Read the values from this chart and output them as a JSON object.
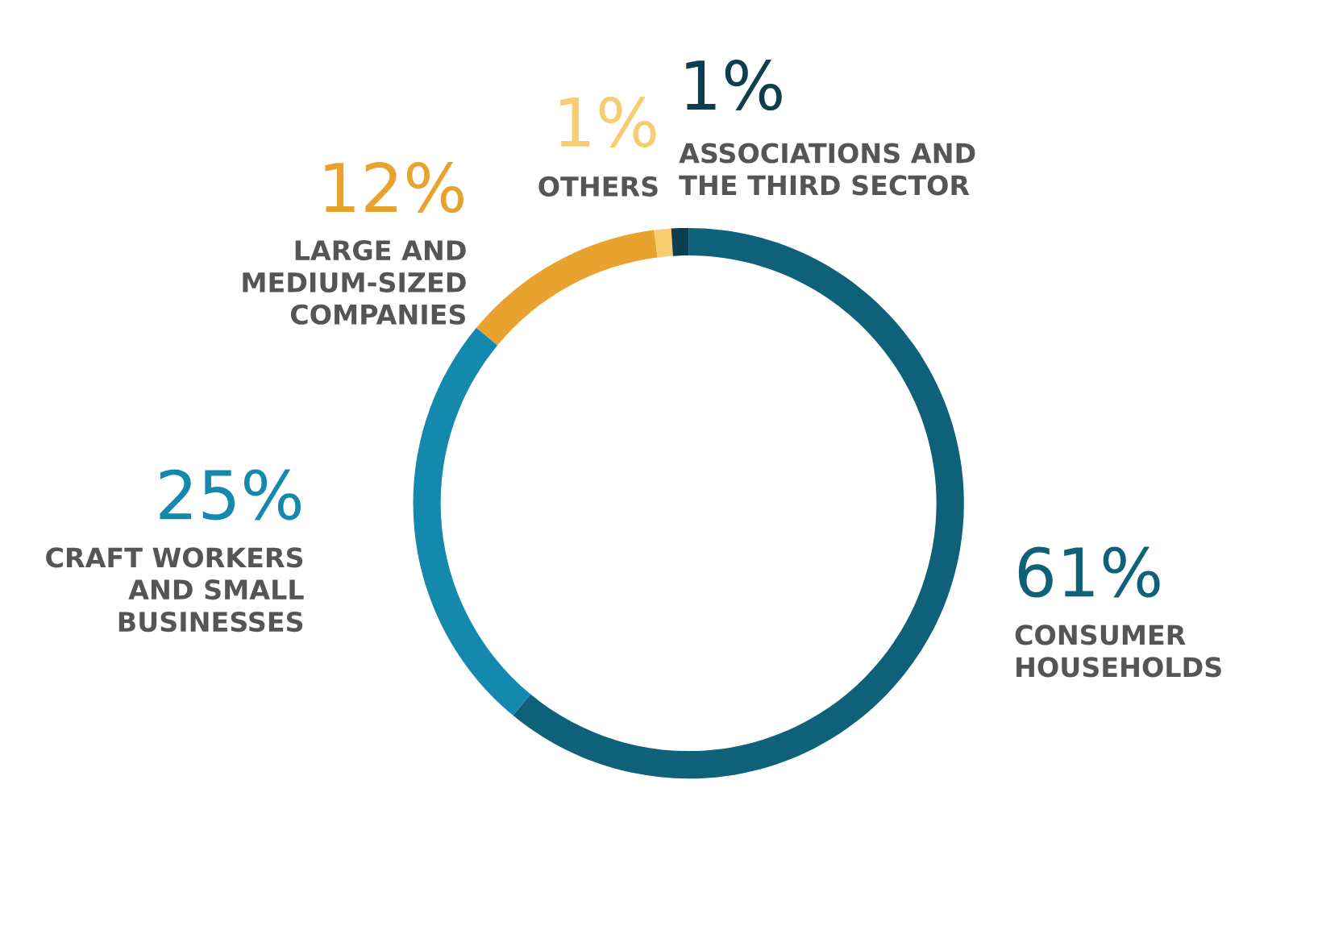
{
  "chart_data": {
    "type": "donut",
    "categories": [
      "CONSUMER HOUSEHOLDS",
      "CRAFT WORKERS AND SMALL BUSINESSES",
      "LARGE AND MEDIUM-SIZED COMPANIES",
      "OTHERS",
      "ASSOCIATIONS AND THE THIRD SECTOR"
    ],
    "values": [
      61,
      25,
      12,
      1,
      1
    ],
    "colors": [
      "#0e6179",
      "#1589ad",
      "#e8a22e",
      "#f8cd72",
      "#0b3f4f"
    ],
    "value_labels": [
      "61%",
      "25%",
      "12%",
      "1%",
      "1%"
    ]
  }
}
